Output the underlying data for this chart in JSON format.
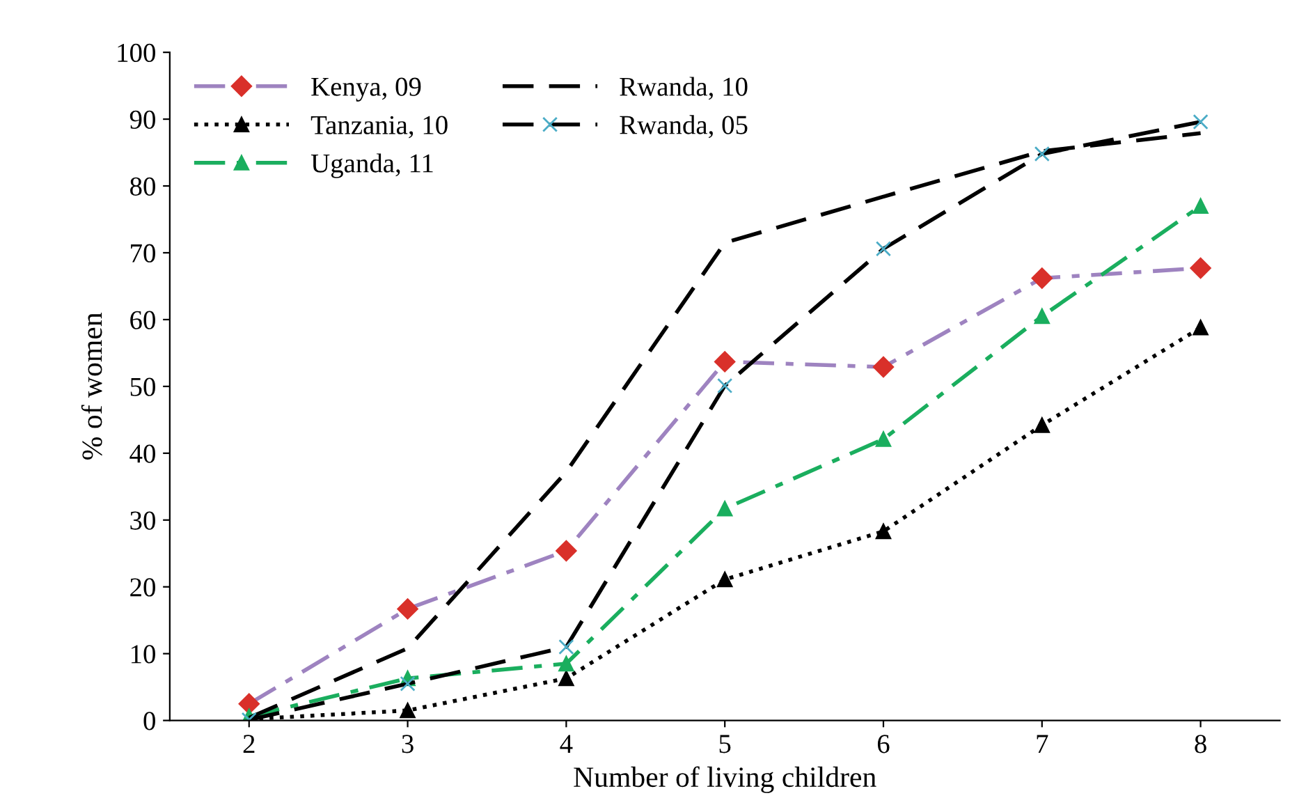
{
  "chart_data": {
    "type": "line",
    "xlabel": "Number of living children",
    "ylabel": "% of women",
    "categories": [
      "2",
      "3",
      "4",
      "5",
      "6",
      "7",
      "8"
    ],
    "ylim": [
      0,
      100
    ],
    "yticks": [
      0,
      10,
      20,
      30,
      40,
      50,
      60,
      70,
      80,
      90,
      100
    ],
    "grid": false,
    "legend": "top left",
    "series": [
      {
        "name": "Kenya, 09",
        "color": "#9e83c0",
        "marker": "diamond",
        "line_style": "dashdot",
        "values": [
          2.5,
          16.7,
          25.4,
          53.7,
          52.9,
          66.2,
          67.7
        ]
      },
      {
        "name": "Tanzania, 10",
        "color": "#000000",
        "marker": "triangle",
        "line_style": "dotted",
        "values": [
          0.2,
          1.5,
          6.3,
          21.1,
          28.3,
          44.2,
          58.8
        ]
      },
      {
        "name": "Uganda, 11",
        "color": "#1aae5e",
        "marker": "triangle",
        "line_style": "dashdot",
        "values": [
          0.6,
          6.3,
          8.5,
          31.7,
          42.1,
          60.5,
          77.0
        ]
      },
      {
        "name": "Rwanda, 10",
        "color": "#000000",
        "marker": "none",
        "line_style": "dashed",
        "values": [
          0.4,
          10.8,
          37.2,
          71.5,
          78.4,
          85.2,
          87.9
        ]
      },
      {
        "name": "Rwanda, 05",
        "color": "#000000",
        "marker": "cross",
        "line_style": "dashed",
        "values": [
          0.1,
          5.5,
          11.0,
          50.1,
          70.6,
          84.8,
          89.6
        ]
      }
    ]
  }
}
